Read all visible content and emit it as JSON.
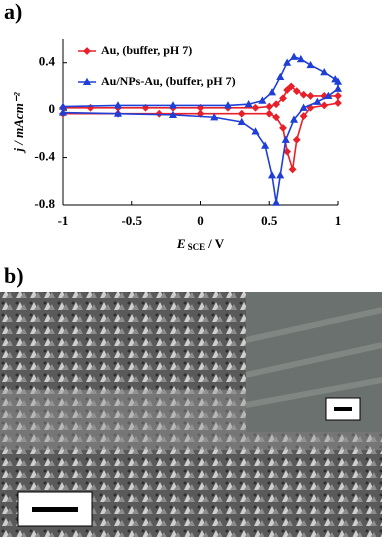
{
  "panels": {
    "a": "a)",
    "b": "b)"
  },
  "chart_data": {
    "type": "line",
    "ylabel": "j / mAcm⁻²",
    "xlabel": {
      "symbol": "E",
      "subscript": "SCE",
      "rest": "/ V"
    },
    "xlim": [
      -1,
      1
    ],
    "xticks": [
      -1,
      -0.5,
      0,
      0.5,
      1
    ],
    "ylim": [
      -0.8,
      0.6
    ],
    "yticks": [
      -0.8,
      -0.4,
      0,
      0.4
    ],
    "series": [
      {
        "name": "Au, (buffer, pH 7)",
        "color": "#e8202a",
        "marker": "diamond",
        "x": [
          -1,
          -0.8,
          -0.6,
          -0.4,
          -0.2,
          0,
          0.2,
          0.4,
          0.5,
          0.55,
          0.6,
          0.63,
          0.66,
          0.7,
          0.75,
          0.8,
          0.9,
          1.0,
          1.0,
          0.9,
          0.8,
          0.75,
          0.7,
          0.67,
          0.63,
          0.6,
          0.55,
          0.5,
          0.3,
          0,
          -0.3,
          -0.6,
          -1
        ],
        "values": [
          0.02,
          0.02,
          0.02,
          0.02,
          0.02,
          0.02,
          0.02,
          0.02,
          0.03,
          0.05,
          0.1,
          0.17,
          0.2,
          0.16,
          0.13,
          0.12,
          0.12,
          0.12,
          0.06,
          0.04,
          0.02,
          -0.05,
          -0.25,
          -0.5,
          -0.35,
          -0.15,
          -0.06,
          -0.03,
          -0.03,
          -0.03,
          -0.03,
          -0.03,
          -0.03
        ]
      },
      {
        "name": "Au/NPs-Au, (buffer, pH 7)",
        "color": "#1f3fd6",
        "marker": "triangle",
        "x": [
          -1,
          -0.6,
          -0.2,
          0.2,
          0.35,
          0.45,
          0.52,
          0.58,
          0.63,
          0.68,
          0.73,
          0.8,
          0.9,
          0.98,
          1.0,
          1.0,
          0.93,
          0.85,
          0.75,
          0.68,
          0.62,
          0.58,
          0.55,
          0.52,
          0.47,
          0.4,
          0.3,
          0.1,
          -0.2,
          -0.6,
          -1
        ],
        "values": [
          0.03,
          0.04,
          0.04,
          0.04,
          0.05,
          0.08,
          0.15,
          0.28,
          0.4,
          0.45,
          0.43,
          0.38,
          0.32,
          0.26,
          0.24,
          0.18,
          0.12,
          0.07,
          0.02,
          -0.08,
          -0.25,
          -0.55,
          -0.78,
          -0.55,
          -0.3,
          -0.18,
          -0.1,
          -0.06,
          -0.04,
          -0.03,
          -0.02
        ]
      }
    ]
  }
}
